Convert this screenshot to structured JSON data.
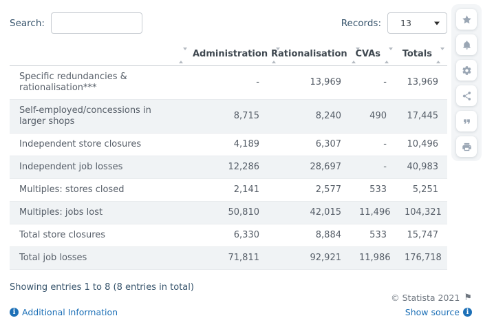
{
  "toolbar": {
    "search_label": "Search:",
    "search_value": "",
    "records_label": "Records:",
    "records_value": "13"
  },
  "table": {
    "columns": [
      "",
      "Administration",
      "Rationalisation",
      "CVAs",
      "Totals"
    ],
    "rows": [
      {
        "label": "Specific redundancies & rationalisation***",
        "values": [
          "-",
          "13,969",
          "-",
          "13,969"
        ]
      },
      {
        "label": "Self-employed/concessions in larger shops",
        "values": [
          "8,715",
          "8,240",
          "490",
          "17,445"
        ]
      },
      {
        "label": "Independent store closures",
        "values": [
          "4,189",
          "6,307",
          "-",
          "10,496"
        ]
      },
      {
        "label": "Independent job losses",
        "values": [
          "12,286",
          "28,697",
          "-",
          "40,983"
        ]
      },
      {
        "label": "Multiples: stores closed",
        "values": [
          "2,141",
          "2,577",
          "533",
          "5,251"
        ]
      },
      {
        "label": "Multiples: jobs lost",
        "values": [
          "50,810",
          "42,015",
          "11,496",
          "104,321"
        ]
      },
      {
        "label": "Total store closures",
        "values": [
          "6,330",
          "8,884",
          "533",
          "15,747"
        ]
      },
      {
        "label": "Total job losses",
        "values": [
          "71,811",
          "92,921",
          "11,986",
          "176,718"
        ]
      }
    ]
  },
  "footer": {
    "showing_text": "Showing entries 1 to 8 (8 entries in total)",
    "copyright": "© Statista 2021",
    "flag_icon": "⚑",
    "additional_info_label": "Additional Information",
    "show_source_label": "Show source",
    "info_badge_char": "i"
  },
  "sidebar": {
    "icons": [
      "star",
      "bell",
      "gear",
      "share",
      "quote",
      "print"
    ]
  },
  "colors": {
    "link_blue": "#1d70b7",
    "navy_text": "#36536b",
    "stripe": "#f0f3f5",
    "icon_gray": "#9aa6b4",
    "copyright_gray": "#6f7780"
  }
}
